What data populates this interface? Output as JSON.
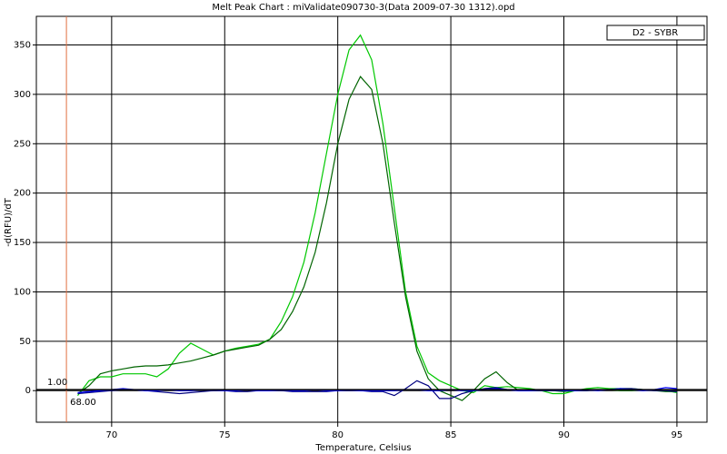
{
  "chart_data": {
    "type": "line",
    "title": "Melt Peak Chart : miValidate090730-3(Data 2009-07-30 1312).opd",
    "x_label": "Temperature, Celsius",
    "y_label": "-d(RFU)/dT",
    "legend_label": "D2 - SYBR",
    "grid": true,
    "xlim": [
      66.67,
      96.33
    ],
    "ylim": [
      -32,
      379
    ],
    "xticks": [
      70,
      75,
      80,
      85,
      90,
      95
    ],
    "yticks": [
      0,
      50,
      100,
      150,
      200,
      250,
      300,
      350
    ],
    "threshold": {
      "value": 1,
      "label": "1.00"
    },
    "begin_temp": {
      "value": 68,
      "label": "68.00"
    },
    "x": [
      68.5,
      69,
      69.5,
      70,
      70.5,
      71,
      71.5,
      72,
      72.5,
      73,
      73.5,
      74,
      74.5,
      75,
      75.5,
      76,
      76.5,
      77,
      77.5,
      78,
      78.5,
      79,
      79.5,
      80,
      80.5,
      81,
      81.5,
      82,
      82.5,
      83,
      83.5,
      84,
      84.5,
      85,
      85.5,
      86,
      86.5,
      87,
      87.5,
      88,
      88.5,
      89,
      89.5,
      90,
      90.5,
      91,
      91.5,
      92,
      92.5,
      93,
      93.5,
      94,
      94.5,
      95
    ],
    "series": [
      {
        "color": "#00c800",
        "values": [
          -5,
          10,
          14,
          14,
          17,
          17,
          17,
          14,
          22,
          38,
          48,
          42,
          36,
          40,
          43,
          45,
          47,
          52,
          70,
          95,
          130,
          180,
          240,
          300,
          345,
          360,
          335,
          270,
          185,
          100,
          45,
          18,
          10,
          5,
          0,
          -2,
          5,
          3,
          4,
          3,
          2,
          0,
          -3,
          -3,
          0,
          2,
          3,
          2,
          2,
          2,
          1,
          1,
          0,
          -2
        ]
      },
      {
        "color": "#006400",
        "values": [
          -3,
          5,
          17,
          20,
          22,
          24,
          25,
          25,
          26,
          28,
          30,
          33,
          36,
          40,
          42,
          44,
          46,
          52,
          62,
          80,
          105,
          140,
          190,
          250,
          295,
          318,
          305,
          250,
          170,
          95,
          40,
          12,
          0,
          -5,
          -10,
          0,
          12,
          19,
          8,
          0,
          0,
          0,
          0,
          -1,
          0,
          0,
          1,
          1,
          0,
          0,
          1,
          0,
          -1,
          -1
        ]
      },
      {
        "color": "#000080",
        "values": [
          -3,
          -2,
          -1,
          0,
          1,
          1,
          0,
          -1,
          -2,
          -3,
          -2,
          -1,
          0,
          0,
          -1,
          -1,
          0,
          0,
          0,
          -1,
          -1,
          -1,
          -1,
          0,
          0,
          0,
          -1,
          -1,
          -5,
          2,
          10,
          5,
          -8,
          -8,
          -3,
          0,
          2,
          3,
          1,
          0,
          0,
          0,
          0,
          0,
          0,
          0,
          1,
          1,
          2,
          2,
          1,
          0,
          0,
          -1
        ]
      },
      {
        "color": "#0000ff",
        "values": [
          -2,
          -1,
          0,
          1,
          2,
          1,
          0,
          0,
          1,
          0,
          0,
          1,
          1,
          0,
          0,
          1,
          0,
          0,
          1,
          0,
          0,
          1,
          0,
          0,
          1,
          0,
          0,
          0,
          0,
          1,
          1,
          0,
          0,
          1,
          0,
          0,
          1,
          2,
          1,
          0,
          0,
          1,
          1,
          0,
          0,
          1,
          0,
          1,
          2,
          1,
          0,
          1,
          3,
          2
        ]
      }
    ]
  }
}
